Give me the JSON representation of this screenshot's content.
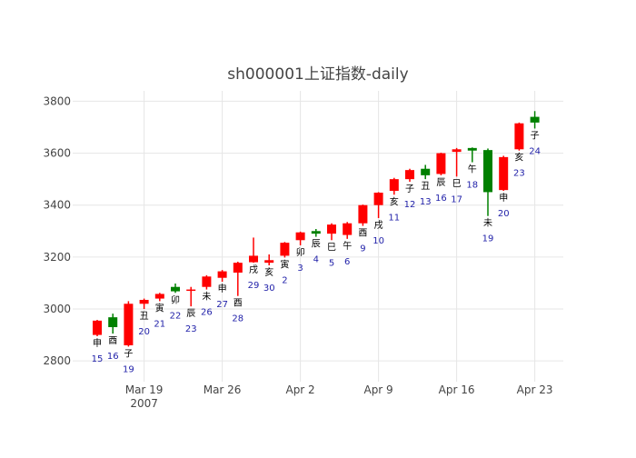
{
  "chart_data": {
    "type": "candlestick",
    "title": "sh000001上证指数-daily",
    "xlabel": "",
    "ylabel": "",
    "ylim": [
      2720,
      3840
    ],
    "y_ticks": [
      2800,
      3000,
      3200,
      3400,
      3600,
      3800
    ],
    "x_ticks": [
      {
        "index": 3,
        "label": "Mar 19",
        "sublabel": "2007"
      },
      {
        "index": 8,
        "label": "Mar 26",
        "sublabel": ""
      },
      {
        "index": 13,
        "label": "Apr 2",
        "sublabel": ""
      },
      {
        "index": 18,
        "label": "Apr 9",
        "sublabel": ""
      },
      {
        "index": 23,
        "label": "Apr 16",
        "sublabel": ""
      },
      {
        "index": 28,
        "label": "Apr 23",
        "sublabel": ""
      }
    ],
    "grid": true,
    "up_color": "#ff0000",
    "down_color": "#008000",
    "candles": [
      {
        "date": "2007-03-15",
        "open": 2900,
        "close": 2955,
        "high": 2958,
        "low": 2895,
        "branch": "申",
        "day": "15"
      },
      {
        "date": "2007-03-16",
        "open": 2968,
        "close": 2930,
        "high": 2982,
        "low": 2905,
        "branch": "酉",
        "day": "16"
      },
      {
        "date": "2007-03-19",
        "open": 2860,
        "close": 3020,
        "high": 3030,
        "low": 2855,
        "branch": "子",
        "day": "19"
      },
      {
        "date": "2007-03-20",
        "open": 3020,
        "close": 3035,
        "high": 3040,
        "low": 3000,
        "branch": "丑",
        "day": "20"
      },
      {
        "date": "2007-03-21",
        "open": 3040,
        "close": 3058,
        "high": 3062,
        "low": 3030,
        "branch": "寅",
        "day": "21"
      },
      {
        "date": "2007-03-22",
        "open": 3085,
        "close": 3068,
        "high": 3098,
        "low": 3062,
        "branch": "卯",
        "day": "22"
      },
      {
        "date": "2007-03-23",
        "open": 3072,
        "close": 3075,
        "high": 3085,
        "low": 3010,
        "branch": "辰",
        "day": "23"
      },
      {
        "date": "2007-03-26",
        "open": 3085,
        "close": 3125,
        "high": 3130,
        "low": 3075,
        "branch": "未",
        "day": "26"
      },
      {
        "date": "2007-03-27",
        "open": 3120,
        "close": 3145,
        "high": 3150,
        "low": 3105,
        "branch": "申",
        "day": "27"
      },
      {
        "date": "2007-03-28",
        "open": 3140,
        "close": 3178,
        "high": 3182,
        "low": 3050,
        "branch": "酉",
        "day": "28"
      },
      {
        "date": "2007-03-29",
        "open": 3180,
        "close": 3205,
        "high": 3275,
        "low": 3178,
        "branch": "戌",
        "day": "29"
      },
      {
        "date": "2007-03-30",
        "open": 3178,
        "close": 3188,
        "high": 3210,
        "low": 3168,
        "branch": "亥",
        "day": "30"
      },
      {
        "date": "2007-04-02",
        "open": 3205,
        "close": 3255,
        "high": 3258,
        "low": 3198,
        "branch": "寅",
        "day": "2"
      },
      {
        "date": "2007-04-03",
        "open": 3265,
        "close": 3295,
        "high": 3298,
        "low": 3245,
        "branch": "卯",
        "day": "3"
      },
      {
        "date": "2007-04-04",
        "open": 3300,
        "close": 3290,
        "high": 3308,
        "low": 3278,
        "branch": "辰",
        "day": "4"
      },
      {
        "date": "2007-04-05",
        "open": 3290,
        "close": 3325,
        "high": 3330,
        "low": 3265,
        "branch": "巳",
        "day": "5"
      },
      {
        "date": "2007-04-06",
        "open": 3285,
        "close": 3330,
        "high": 3335,
        "low": 3270,
        "branch": "午",
        "day": "6"
      },
      {
        "date": "2007-04-09",
        "open": 3330,
        "close": 3400,
        "high": 3402,
        "low": 3320,
        "branch": "酉",
        "day": "9"
      },
      {
        "date": "2007-04-10",
        "open": 3400,
        "close": 3448,
        "high": 3450,
        "low": 3350,
        "branch": "戌",
        "day": "10"
      },
      {
        "date": "2007-04-11",
        "open": 3455,
        "close": 3500,
        "high": 3505,
        "low": 3440,
        "branch": "亥",
        "day": "11"
      },
      {
        "date": "2007-04-12",
        "open": 3500,
        "close": 3535,
        "high": 3540,
        "low": 3490,
        "branch": "子",
        "day": "12"
      },
      {
        "date": "2007-04-13",
        "open": 3540,
        "close": 3515,
        "high": 3555,
        "low": 3500,
        "branch": "丑",
        "day": "13"
      },
      {
        "date": "2007-04-16",
        "open": 3520,
        "close": 3600,
        "high": 3602,
        "low": 3515,
        "branch": "辰",
        "day": "16"
      },
      {
        "date": "2007-04-17",
        "open": 3605,
        "close": 3615,
        "high": 3620,
        "low": 3510,
        "branch": "巳",
        "day": "17"
      },
      {
        "date": "2007-04-18",
        "open": 3620,
        "close": 3610,
        "high": 3622,
        "low": 3565,
        "branch": "午",
        "day": "18"
      },
      {
        "date": "2007-04-19",
        "open": 3612,
        "close": 3450,
        "high": 3618,
        "low": 3358,
        "branch": "未",
        "day": "19"
      },
      {
        "date": "2007-04-20",
        "open": 3458,
        "close": 3585,
        "high": 3590,
        "low": 3455,
        "branch": "申",
        "day": "20"
      },
      {
        "date": "2007-04-23",
        "open": 3615,
        "close": 3715,
        "high": 3718,
        "low": 3610,
        "branch": "亥",
        "day": "23"
      },
      {
        "date": "2007-04-24",
        "open": 3740,
        "close": 3718,
        "high": 3762,
        "low": 3695,
        "branch": "子",
        "day": "24"
      }
    ]
  }
}
